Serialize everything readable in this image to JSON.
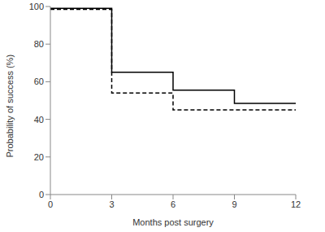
{
  "chart_data": {
    "type": "line",
    "x_label": "Months post surgery",
    "y_label": "Probability of success (%)",
    "x": [
      0,
      3,
      6,
      9,
      12
    ],
    "series": [
      {
        "color": "#000000",
        "line_style": "solid",
        "values": [
          99,
          65,
          55.5,
          48.5,
          48.5
        ]
      },
      {
        "color": "#000000",
        "line_style": "dashed",
        "values": [
          98.5,
          54,
          45,
          45,
          45
        ]
      }
    ],
    "xlim": [
      0,
      12
    ],
    "xticks": [
      0,
      3,
      6,
      9,
      12
    ],
    "ylim": [
      0,
      100
    ],
    "yticks": [
      0,
      20,
      40,
      60,
      80,
      100
    ],
    "grid": false
  }
}
